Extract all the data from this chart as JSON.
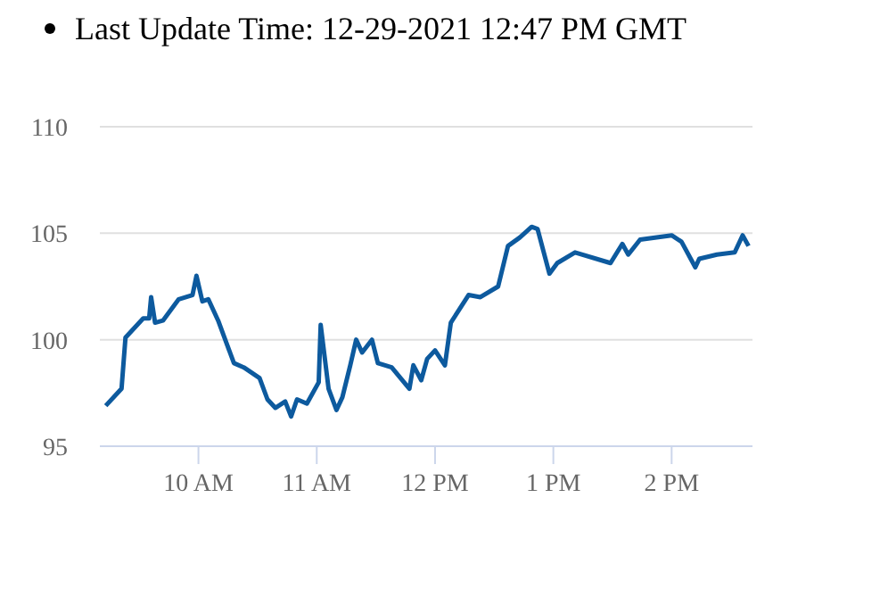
{
  "chart_data": {
    "type": "line",
    "title": "Last Update Time: 12-29-2021 12:47 PM GMT",
    "x": [
      "2021-12-29T09:13",
      "2021-12-29T09:21",
      "2021-12-29T09:23",
      "2021-12-29T09:32",
      "2021-12-29T09:35",
      "2021-12-29T09:36",
      "2021-12-29T09:38",
      "2021-12-29T09:42",
      "2021-12-29T09:50",
      "2021-12-29T09:57",
      "2021-12-29T09:59",
      "2021-12-29T10:02",
      "2021-12-29T10:05",
      "2021-12-29T10:10",
      "2021-12-29T10:14",
      "2021-12-29T10:18",
      "2021-12-29T10:23",
      "2021-12-29T10:31",
      "2021-12-29T10:35",
      "2021-12-29T10:39",
      "2021-12-29T10:44",
      "2021-12-29T10:47",
      "2021-12-29T10:50",
      "2021-12-29T10:55",
      "2021-12-29T11:01",
      "2021-12-29T11:02",
      "2021-12-29T11:06",
      "2021-12-29T11:10",
      "2021-12-29T11:13",
      "2021-12-29T11:17",
      "2021-12-29T11:20",
      "2021-12-29T11:23",
      "2021-12-29T11:28",
      "2021-12-29T11:31",
      "2021-12-29T11:38",
      "2021-12-29T11:47",
      "2021-12-29T11:49",
      "2021-12-29T11:53",
      "2021-12-29T11:56",
      "2021-12-29T12:00",
      "2021-12-29T12:05",
      "2021-12-29T12:08",
      "2021-12-29T12:17",
      "2021-12-29T12:23",
      "2021-12-29T12:32",
      "2021-12-29T12:37",
      "2021-12-29T12:43",
      "2021-12-29T12:49",
      "2021-12-29T12:52",
      "2021-12-29T12:58",
      "2021-12-29T13:02",
      "2021-12-29T13:11",
      "2021-12-29T13:29",
      "2021-12-29T13:35",
      "2021-12-29T13:38",
      "2021-12-29T13:44",
      "2021-12-29T14:00",
      "2021-12-29T14:05",
      "2021-12-29T14:12",
      "2021-12-29T14:14",
      "2021-12-29T14:23",
      "2021-12-29T14:32",
      "2021-12-29T14:36",
      "2021-12-29T14:39"
    ],
    "series": [
      {
        "color": "#0d5a9e",
        "values": [
          96.9,
          97.7,
          100.1,
          101.0,
          101.0,
          102.0,
          100.8,
          100.9,
          101.9,
          102.1,
          103.0,
          101.8,
          101.9,
          100.9,
          99.9,
          98.9,
          98.7,
          98.2,
          97.2,
          96.8,
          97.1,
          96.4,
          97.2,
          97.0,
          98.0,
          100.7,
          97.7,
          96.7,
          97.3,
          98.8,
          100.0,
          99.4,
          100.0,
          98.9,
          98.7,
          97.7,
          98.8,
          98.1,
          99.1,
          99.5,
          98.8,
          100.8,
          102.1,
          102.0,
          102.5,
          104.4,
          104.8,
          105.3,
          105.2,
          103.1,
          103.6,
          104.1,
          103.6,
          104.5,
          104.0,
          104.7,
          104.9,
          104.6,
          103.4,
          103.8,
          104.0,
          104.1,
          104.9,
          104.4
        ]
      }
    ],
    "xlim": [
      "2021-12-29T09:10",
      "2021-12-29T14:41"
    ],
    "ylim": [
      95,
      110
    ],
    "xticks": [
      {
        "value": "2021-12-29T10:00",
        "label": "10 AM"
      },
      {
        "value": "2021-12-29T11:00",
        "label": "11 AM"
      },
      {
        "value": "2021-12-29T12:00",
        "label": "12 PM"
      },
      {
        "value": "2021-12-29T13:00",
        "label": "1 PM"
      },
      {
        "value": "2021-12-29T14:00",
        "label": "2 PM"
      }
    ],
    "yticks": [
      95,
      100,
      105,
      110
    ],
    "grid": "y",
    "marker": "none",
    "line_style": "solid"
  }
}
